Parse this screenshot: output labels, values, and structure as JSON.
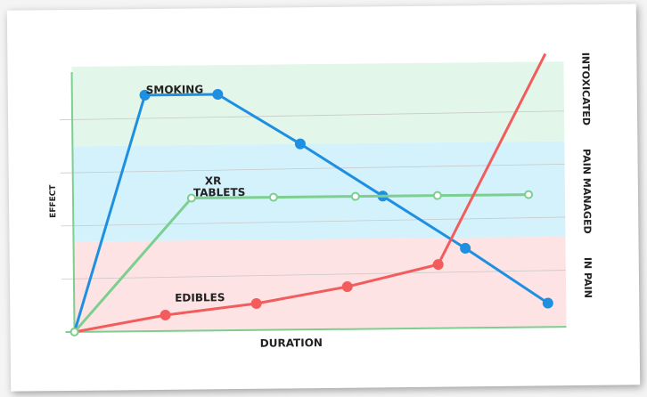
{
  "chart_data": {
    "type": "line",
    "title": "",
    "xlabel": "DURATION",
    "ylabel": "EFFECT",
    "x": [
      0,
      1,
      2,
      3,
      4,
      5
    ],
    "xlim": [
      0,
      5.4
    ],
    "ylim": [
      0,
      10
    ],
    "grid": true,
    "bands": [
      {
        "label": "INTOXICATED",
        "from": 7.0,
        "to": 10.0,
        "color": "#e3f6ea"
      },
      {
        "label": "PAIN MANAGED",
        "from": 3.4,
        "to": 7.0,
        "color": "#d4f2fb"
      },
      {
        "label": "IN PAIN",
        "from": 0.0,
        "to": 3.4,
        "color": "#fde3e3"
      }
    ],
    "series": [
      {
        "name": "SMOKING",
        "color": "#1e8fe1",
        "points": [
          [
            0,
            0
          ],
          [
            0.8,
            8.9
          ],
          [
            1.6,
            8.9
          ],
          [
            2.5,
            7.0
          ],
          [
            3.4,
            5.0
          ],
          [
            4.3,
            3.0
          ],
          [
            5.2,
            0.9
          ]
        ]
      },
      {
        "name": "XR TABLETS",
        "color": "#7ccf8f",
        "points": [
          [
            0,
            0
          ],
          [
            1.3,
            5.0
          ],
          [
            2.2,
            5.0
          ],
          [
            3.1,
            5.0
          ],
          [
            4.0,
            5.0
          ],
          [
            5.0,
            5.0
          ]
        ]
      },
      {
        "name": "EDIBLES",
        "color": "#f25c5c",
        "points": [
          [
            0,
            0
          ],
          [
            1.0,
            0.6
          ],
          [
            2.0,
            1.0
          ],
          [
            3.0,
            1.6
          ],
          [
            4.0,
            2.4
          ],
          [
            5.2,
            10.3
          ]
        ]
      }
    ]
  }
}
